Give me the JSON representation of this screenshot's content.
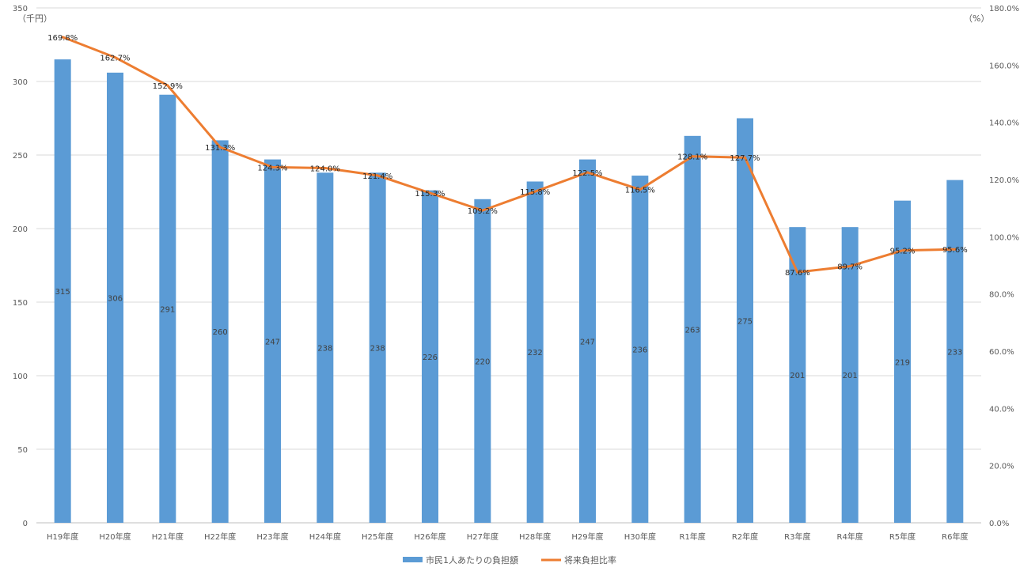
{
  "chart_data": {
    "type": "bar",
    "categories": [
      "H19年度",
      "H20年度",
      "H21年度",
      "H22年度",
      "H23年度",
      "H24年度",
      "H25年度",
      "H26年度",
      "H27年度",
      "H28年度",
      "H29年度",
      "H30年度",
      "R1年度",
      "R2年度",
      "R3年度",
      "R4年度",
      "R5年度",
      "R6年度"
    ],
    "series": [
      {
        "name": "市民1人あたりの負担額",
        "type": "bar",
        "axis": "left",
        "color": "#5b9bd5",
        "values": [
          315,
          306,
          291,
          260,
          247,
          238,
          238,
          226,
          220,
          232,
          247,
          236,
          263,
          275,
          201,
          201,
          219,
          233
        ],
        "labels": [
          "315",
          "306",
          "291",
          "260",
          "247",
          "238",
          "238",
          "226",
          "220",
          "232",
          "247",
          "236",
          "263",
          "275",
          "201",
          "201",
          "219",
          "233"
        ]
      },
      {
        "name": "将来負担比率",
        "type": "line",
        "axis": "right",
        "color": "#ed7d31",
        "values": [
          169.8,
          162.7,
          152.9,
          131.3,
          124.3,
          124.0,
          121.4,
          115.3,
          109.2,
          115.8,
          122.5,
          116.5,
          128.1,
          127.7,
          87.6,
          89.7,
          95.2,
          95.6
        ],
        "labels": [
          "169.8%",
          "162.7%",
          "152.9%",
          "131.3%",
          "124.3%",
          "124.0%",
          "121.4%",
          "115.3%",
          "109.2%",
          "115.8%",
          "122.5%",
          "116.5%",
          "128.1%",
          "127.7%",
          "87.6%",
          "89.7%",
          "95.2%",
          "95.6%"
        ]
      }
    ],
    "y_left": {
      "unit_label": "（千円）",
      "ylim": [
        0,
        350
      ],
      "ticks": [
        0,
        50,
        100,
        150,
        200,
        250,
        300,
        350
      ],
      "tick_labels": [
        "0",
        "50",
        "100",
        "150",
        "200",
        "250",
        "300",
        "350"
      ]
    },
    "y_right": {
      "unit_label": "（%）",
      "ylim": [
        0,
        180
      ],
      "ticks": [
        0,
        20,
        40,
        60,
        80,
        100,
        120,
        140,
        160,
        180
      ],
      "tick_labels": [
        "0.0%",
        "20.0%",
        "40.0%",
        "60.0%",
        "80.0%",
        "100.0%",
        "120.0%",
        "140.0%",
        "160.0%",
        "180.0%"
      ]
    },
    "grid": true,
    "legend": "bottom"
  }
}
